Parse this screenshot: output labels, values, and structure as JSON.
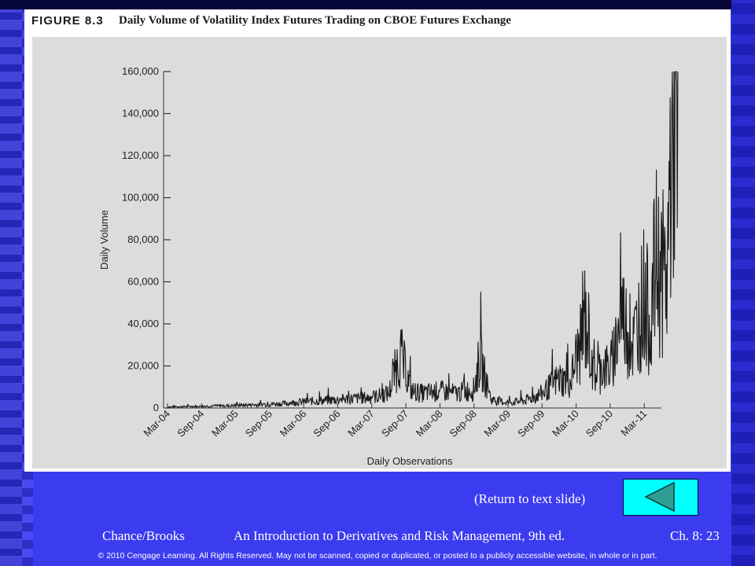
{
  "figure": {
    "number": "FIGURE 8.3",
    "title": "Daily Volume of Volatility Index Futures Trading on CBOE Futures Exchange"
  },
  "chart_data": {
    "type": "line",
    "title": "Daily Volume of Volatility Index Futures Trading on CBOE Futures Exchange",
    "xlabel": "Daily Observations",
    "ylabel": "Daily Volume",
    "ylim": [
      0,
      160000
    ],
    "yticks": [
      0,
      20000,
      40000,
      60000,
      80000,
      100000,
      120000,
      140000,
      160000
    ],
    "ytick_labels": [
      "0",
      "20,000",
      "40,000",
      "60,000",
      "80,000",
      "100,000",
      "120,000",
      "140,000",
      "160,000"
    ],
    "xtick_labels": [
      "Mar-04",
      "Sep-04",
      "Mar-05",
      "Sep-05",
      "Mar-06",
      "Sep-06",
      "Mar-07",
      "Sep-07",
      "Mar-08",
      "Sep-08",
      "Mar-09",
      "Sep-09",
      "Mar-10",
      "Sep-10",
      "Mar-11"
    ],
    "grid": false,
    "series": [
      {
        "x": [
          "Mar-04",
          "Jun-04",
          "Sep-04",
          "Dec-04",
          "Mar-05",
          "Jun-05",
          "Sep-05",
          "Dec-05",
          "Mar-06",
          "Jun-06",
          "Sep-06",
          "Dec-06",
          "Mar-07",
          "Jun-07",
          "Aug-07",
          "Oct-07",
          "Dec-07",
          "Mar-08",
          "Jun-08",
          "Sep-08",
          "Oct-08",
          "Dec-08",
          "Mar-09",
          "Jun-09",
          "Sep-09",
          "Dec-09",
          "Feb-10",
          "Mar-10",
          "May-10",
          "Jun-10",
          "Aug-10",
          "Sep-10",
          "Nov-10",
          "Jan-11",
          "Mar-11",
          "Apr-11",
          "May-11",
          "Jul-11",
          "Aug-11",
          "Sep-11"
        ],
        "values": [
          500,
          700,
          800,
          1000,
          1200,
          1500,
          1800,
          2200,
          3000,
          3500,
          4000,
          4500,
          5000,
          7000,
          26000,
          8000,
          7000,
          8000,
          7000,
          9000,
          24000,
          4000,
          2500,
          3500,
          7000,
          14000,
          12000,
          24000,
          40000,
          15000,
          20000,
          18000,
          45000,
          30000,
          55000,
          40000,
          70000,
          60000,
          152000,
          99000
        ]
      }
    ]
  },
  "nav": {
    "return_label": "(Return to text slide)"
  },
  "footer": {
    "authors": "Chance/Brooks",
    "book": "An Introduction to Derivatives and Risk Management, 9th ed.",
    "chapter": "Ch. 8:  23",
    "copyright": "© 2010 Cengage Learning. All Rights Reserved.  May not be scanned, copied or duplicated, or posted to a publicly accessible website, in whole or in part."
  },
  "colors": {
    "background": "#3b3bf0",
    "button": "#00ffff",
    "triangle": "#2e9e94",
    "plot_bg": "#dddcdc"
  }
}
